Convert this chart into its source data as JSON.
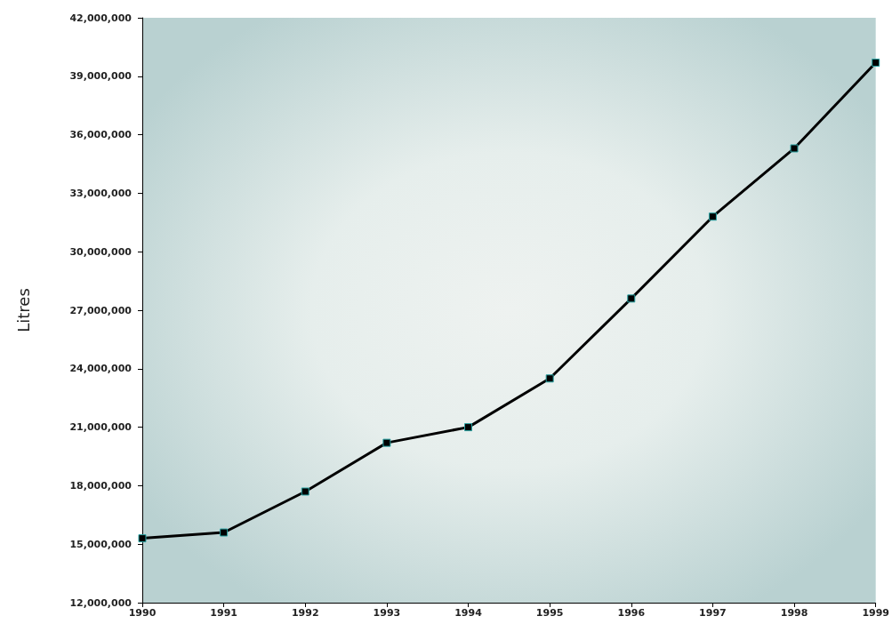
{
  "chart_data": {
    "type": "line",
    "ylabel": "Litres",
    "x": [
      1990,
      1991,
      1992,
      1993,
      1994,
      1995,
      1996,
      1997,
      1998,
      1999
    ],
    "series": [
      {
        "color": "#000000",
        "values": [
          15300000,
          15600000,
          17700000,
          20200000,
          21000000,
          23500000,
          27600000,
          31800000,
          35300000,
          39700000
        ]
      }
    ],
    "xlim": [
      1990,
      1999
    ],
    "xticks": [
      1990,
      1991,
      1992,
      1993,
      1994,
      1995,
      1996,
      1997,
      1998,
      1999
    ],
    "ylim": [
      12000000,
      42000000
    ],
    "yticks": [
      {
        "value": 12000000,
        "label": "12,000,000"
      },
      {
        "value": 15000000,
        "label": "15,000,000"
      },
      {
        "value": 18000000,
        "label": "18,000,000"
      },
      {
        "value": 21000000,
        "label": "21,000,000"
      },
      {
        "value": 24000000,
        "label": "24,000,000"
      },
      {
        "value": 27000000,
        "label": "27,000,000"
      },
      {
        "value": 30000000,
        "label": "30,000,000"
      },
      {
        "value": 33000000,
        "label": "33,000,000"
      },
      {
        "value": 36000000,
        "label": "36,000,000"
      },
      {
        "value": 39000000,
        "label": "39,000,000"
      },
      {
        "value": 42000000,
        "label": "42,000,000"
      }
    ],
    "grid": false,
    "marker": "square",
    "line_style": "solid"
  }
}
